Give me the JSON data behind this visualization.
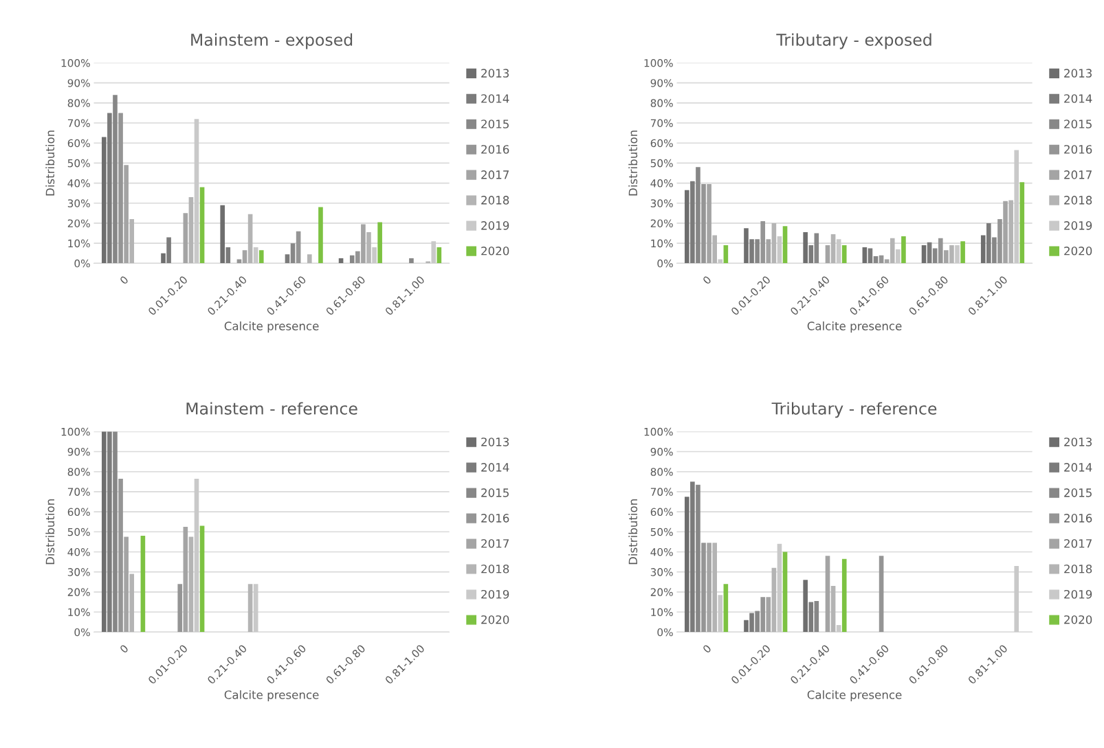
{
  "chart_data": [
    {
      "type": "bar",
      "title": "Mainstem - exposed",
      "xlabel": "Calcite presence",
      "ylabel": "Distribution",
      "categories": [
        "0",
        "0.01-0.20",
        "0.21-0.40",
        "0.41-0.60",
        "0.61-0.80",
        "0.81-1.00"
      ],
      "ylim": [
        0,
        100
      ],
      "yticks": [
        {
          "value": 0,
          "label": "0%"
        },
        {
          "value": 10,
          "label": "10%"
        },
        {
          "value": 20,
          "label": "20%"
        },
        {
          "value": 30,
          "label": "30%"
        },
        {
          "value": 40,
          "label": "40%"
        },
        {
          "value": 50,
          "label": "50%"
        },
        {
          "value": 60,
          "label": "60%"
        },
        {
          "value": 70,
          "label": "70%"
        },
        {
          "value": 80,
          "label": "80%"
        },
        {
          "value": 90,
          "label": "90%"
        },
        {
          "value": 100,
          "label": "100%"
        }
      ],
      "grid": "y",
      "legend": "right",
      "series": [
        {
          "name": "2013",
          "color": "#6e6e6e",
          "values": [
            63,
            5,
            29,
            null,
            2.5,
            null
          ]
        },
        {
          "name": "2014",
          "color": "#7b7b7b",
          "values": [
            75,
            13,
            8,
            4.5,
            null,
            null
          ]
        },
        {
          "name": "2015",
          "color": "#878787",
          "values": [
            84,
            null,
            null,
            10,
            4,
            2.5
          ]
        },
        {
          "name": "2016",
          "color": "#959595",
          "values": [
            75,
            null,
            2,
            16,
            6,
            null
          ]
        },
        {
          "name": "2017",
          "color": "#a4a4a4",
          "values": [
            49,
            25,
            6.5,
            null,
            19.5,
            null
          ]
        },
        {
          "name": "2018",
          "color": "#b4b4b4",
          "values": [
            22,
            33,
            24.5,
            4.5,
            15.5,
            1
          ]
        },
        {
          "name": "2019",
          "color": "#c9c9c9",
          "values": [
            null,
            72,
            8,
            null,
            8,
            11
          ]
        },
        {
          "name": "2020",
          "color": "#7dc242",
          "values": [
            null,
            38,
            6.5,
            28,
            20.5,
            8
          ]
        }
      ]
    },
    {
      "type": "bar",
      "title": "Tributary - exposed",
      "xlabel": "Calcite presence",
      "ylabel": "Distribution",
      "categories": [
        "0",
        "0.01-0.20",
        "0.21-0.40",
        "0.41-0.60",
        "0.61-0.80",
        "0.81-1.00"
      ],
      "ylim": [
        0,
        100
      ],
      "yticks": [
        {
          "value": 0,
          "label": "0%"
        },
        {
          "value": 10,
          "label": "10%"
        },
        {
          "value": 20,
          "label": "20%"
        },
        {
          "value": 30,
          "label": "30%"
        },
        {
          "value": 40,
          "label": "40%"
        },
        {
          "value": 50,
          "label": "50%"
        },
        {
          "value": 60,
          "label": "60%"
        },
        {
          "value": 70,
          "label": "70%"
        },
        {
          "value": 80,
          "label": "80%"
        },
        {
          "value": 90,
          "label": "90%"
        },
        {
          "value": 100,
          "label": "100%"
        }
      ],
      "grid": "y",
      "legend": "right",
      "series": [
        {
          "name": "2013",
          "color": "#6e6e6e",
          "values": [
            36.5,
            17.5,
            15.5,
            8,
            9,
            14
          ]
        },
        {
          "name": "2014",
          "color": "#7b7b7b",
          "values": [
            41,
            12,
            9,
            7.5,
            10.5,
            20
          ]
        },
        {
          "name": "2015",
          "color": "#878787",
          "values": [
            48,
            12,
            15,
            3.5,
            7.5,
            13
          ]
        },
        {
          "name": "2016",
          "color": "#959595",
          "values": [
            39.5,
            21,
            null,
            4,
            12.5,
            22
          ]
        },
        {
          "name": "2017",
          "color": "#a4a4a4",
          "values": [
            39.5,
            12,
            9,
            2,
            6.5,
            31
          ]
        },
        {
          "name": "2018",
          "color": "#b4b4b4",
          "values": [
            14,
            20,
            14.5,
            12.5,
            9,
            31.5
          ]
        },
        {
          "name": "2019",
          "color": "#c9c9c9",
          "values": [
            2,
            13.5,
            12,
            7,
            9,
            56.5
          ]
        },
        {
          "name": "2020",
          "color": "#7dc242",
          "values": [
            9,
            18.5,
            9,
            13.5,
            11,
            40.5
          ]
        }
      ]
    },
    {
      "type": "bar",
      "title": "Mainstem - reference",
      "xlabel": "Calcite presence",
      "ylabel": "Distribution",
      "categories": [
        "0",
        "0.01-0.20",
        "0.21-0.40",
        "0.41-0.60",
        "0.61-0.80",
        "0.81-1.00"
      ],
      "ylim": [
        0,
        100
      ],
      "yticks": [
        {
          "value": 0,
          "label": "0%"
        },
        {
          "value": 10,
          "label": "10%"
        },
        {
          "value": 20,
          "label": "20%"
        },
        {
          "value": 30,
          "label": "30%"
        },
        {
          "value": 40,
          "label": "40%"
        },
        {
          "value": 50,
          "label": "50%"
        },
        {
          "value": 60,
          "label": "60%"
        },
        {
          "value": 70,
          "label": "70%"
        },
        {
          "value": 80,
          "label": "80%"
        },
        {
          "value": 90,
          "label": "90%"
        },
        {
          "value": 100,
          "label": "100%"
        }
      ],
      "grid": "y",
      "legend": "right",
      "series": [
        {
          "name": "2013",
          "color": "#6e6e6e",
          "values": [
            100,
            null,
            null,
            null,
            null,
            null
          ]
        },
        {
          "name": "2014",
          "color": "#7b7b7b",
          "values": [
            100,
            null,
            null,
            null,
            null,
            null
          ]
        },
        {
          "name": "2015",
          "color": "#878787",
          "values": [
            100,
            null,
            null,
            null,
            null,
            null
          ]
        },
        {
          "name": "2016",
          "color": "#959595",
          "values": [
            76.5,
            24,
            null,
            null,
            null,
            null
          ]
        },
        {
          "name": "2017",
          "color": "#a4a4a4",
          "values": [
            47.5,
            52.5,
            null,
            null,
            null,
            null
          ]
        },
        {
          "name": "2018",
          "color": "#b4b4b4",
          "values": [
            29,
            47.5,
            24,
            null,
            null,
            null
          ]
        },
        {
          "name": "2019",
          "color": "#c9c9c9",
          "values": [
            null,
            76.5,
            24,
            null,
            null,
            null
          ]
        },
        {
          "name": "2020",
          "color": "#7dc242",
          "values": [
            48,
            53,
            null,
            null,
            null,
            null
          ]
        }
      ]
    },
    {
      "type": "bar",
      "title": "Tributary - reference",
      "xlabel": "Calcite presence",
      "ylabel": "Distribution",
      "categories": [
        "0",
        "0.01-0.20",
        "0.21-0.40",
        "0.41-0.60",
        "0.61-0.80",
        "0.81-1.00"
      ],
      "ylim": [
        0,
        100
      ],
      "yticks": [
        {
          "value": 0,
          "label": "0%"
        },
        {
          "value": 10,
          "label": "10%"
        },
        {
          "value": 20,
          "label": "20%"
        },
        {
          "value": 30,
          "label": "30%"
        },
        {
          "value": 40,
          "label": "40%"
        },
        {
          "value": 50,
          "label": "50%"
        },
        {
          "value": 60,
          "label": "60%"
        },
        {
          "value": 70,
          "label": "70%"
        },
        {
          "value": 80,
          "label": "80%"
        },
        {
          "value": 90,
          "label": "90%"
        },
        {
          "value": 100,
          "label": "100%"
        }
      ],
      "grid": "y",
      "legend": "right",
      "series": [
        {
          "name": "2013",
          "color": "#6e6e6e",
          "values": [
            67.5,
            6,
            26,
            null,
            null,
            null
          ]
        },
        {
          "name": "2014",
          "color": "#7b7b7b",
          "values": [
            75,
            9.5,
            15,
            null,
            null,
            null
          ]
        },
        {
          "name": "2015",
          "color": "#878787",
          "values": [
            73.5,
            10.5,
            15.5,
            null,
            null,
            null
          ]
        },
        {
          "name": "2016",
          "color": "#959595",
          "values": [
            44.5,
            17.5,
            null,
            38,
            null,
            null
          ]
        },
        {
          "name": "2017",
          "color": "#a4a4a4",
          "values": [
            44.5,
            17.5,
            38,
            null,
            null,
            null
          ]
        },
        {
          "name": "2018",
          "color": "#b4b4b4",
          "values": [
            44.5,
            32,
            23,
            null,
            null,
            null
          ]
        },
        {
          "name": "2019",
          "color": "#c9c9c9",
          "values": [
            18.5,
            44,
            3.5,
            null,
            null,
            33
          ]
        },
        {
          "name": "2020",
          "color": "#7dc242",
          "values": [
            24,
            40,
            36.5,
            null,
            null,
            null
          ]
        }
      ]
    }
  ]
}
